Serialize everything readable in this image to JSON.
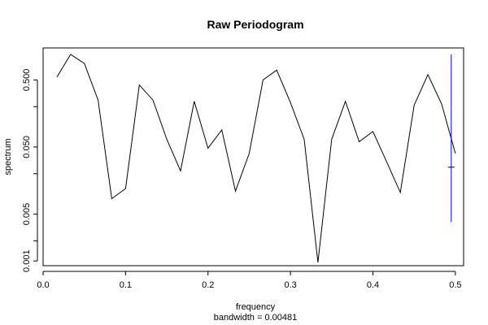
{
  "chart_data": {
    "type": "line",
    "title": "Raw Periodogram",
    "xlabel": "frequency",
    "sublabel": "bandwidth = 0.00481",
    "ylabel": "spectrum",
    "y_scale": "log",
    "xlim": [
      0.0,
      0.51
    ],
    "ylim": [
      0.00085,
      1.5
    ],
    "x_ticks": [
      0.0,
      0.1,
      0.2,
      0.3,
      0.4,
      0.5
    ],
    "x_tick_labels": [
      "0.0",
      "0.1",
      "0.2",
      "0.3",
      "0.4",
      "0.5"
    ],
    "y_ticks": [
      0.001,
      0.005,
      0.05,
      0.5
    ],
    "y_tick_labels": [
      "0.001",
      "0.005",
      "0.050",
      "0.500"
    ],
    "y_minor_ticks": [
      0.002,
      0.02,
      0.2
    ],
    "grid": false,
    "series": [
      {
        "color": "#000000",
        "x": [
          0.0167,
          0.0333,
          0.05,
          0.0667,
          0.0833,
          0.1,
          0.1167,
          0.1333,
          0.15,
          0.1667,
          0.1833,
          0.2,
          0.2167,
          0.2333,
          0.25,
          0.2667,
          0.2833,
          0.3,
          0.3167,
          0.3333,
          0.35,
          0.3667,
          0.3833,
          0.4,
          0.4167,
          0.4333,
          0.45,
          0.4667,
          0.4833,
          0.5
        ],
        "y": [
          0.55,
          1.2,
          0.88,
          0.25,
          0.0085,
          0.012,
          0.42,
          0.25,
          0.065,
          0.022,
          0.24,
          0.048,
          0.09,
          0.011,
          0.04,
          0.5,
          0.7,
          0.23,
          0.065,
          0.00095,
          0.065,
          0.24,
          0.06,
          0.085,
          0.03,
          0.0105,
          0.21,
          0.6,
          0.22,
          0.04
        ]
      }
    ],
    "ci_bar": {
      "color": "#0000ff",
      "x": 0.495,
      "lower": 0.0038,
      "upper": 1.2,
      "center": 0.025
    }
  }
}
